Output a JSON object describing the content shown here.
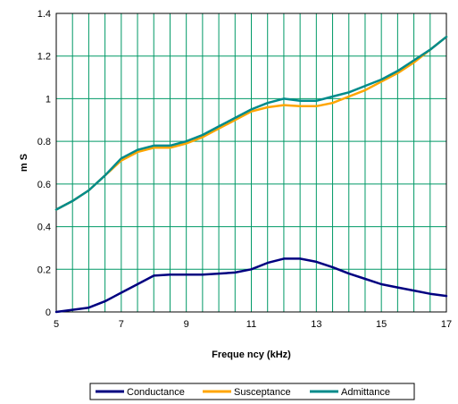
{
  "chart_data": {
    "type": "line",
    "title": "",
    "xlabel": "Freque ncy (kHz)",
    "ylabel": "m S",
    "xlim": [
      5,
      17
    ],
    "ylim": [
      0,
      1.4
    ],
    "x_ticks": [
      "5",
      "7",
      "9",
      "11",
      "13",
      "15",
      "17"
    ],
    "y_ticks": [
      "0",
      "0.2",
      "0.4",
      "0.6",
      "0.8",
      "1",
      "1.2",
      "1.4"
    ],
    "grid": true,
    "grid_color": "#009966",
    "legend_position": "bottom",
    "x": [
      5,
      5.5,
      6,
      6.5,
      7,
      7.5,
      8,
      8.5,
      9,
      9.5,
      10,
      10.5,
      11,
      11.5,
      12,
      12.5,
      13,
      13.5,
      14,
      14.5,
      15,
      15.5,
      16,
      16.5,
      17
    ],
    "series": [
      {
        "name": "Conductance",
        "color": "#000080",
        "values": [
          0.0,
          0.01,
          0.02,
          0.05,
          0.09,
          0.13,
          0.17,
          0.175,
          0.175,
          0.175,
          0.18,
          0.185,
          0.2,
          0.23,
          0.25,
          0.25,
          0.235,
          0.21,
          0.18,
          0.155,
          0.13,
          0.115,
          0.1,
          0.085,
          0.075
        ]
      },
      {
        "name": "Susceptance",
        "color": "#FFA500",
        "values": [
          0.48,
          0.52,
          0.57,
          0.64,
          0.71,
          0.75,
          0.77,
          0.77,
          0.79,
          0.82,
          0.86,
          0.9,
          0.94,
          0.96,
          0.97,
          0.965,
          0.965,
          0.98,
          1.01,
          1.04,
          1.08,
          1.12,
          1.17,
          1.23,
          1.29
        ]
      },
      {
        "name": "Admittance",
        "color": "#008B8B",
        "values": [
          0.48,
          0.52,
          0.57,
          0.64,
          0.72,
          0.76,
          0.78,
          0.78,
          0.8,
          0.83,
          0.87,
          0.91,
          0.95,
          0.98,
          1.0,
          0.99,
          0.99,
          1.01,
          1.03,
          1.06,
          1.09,
          1.13,
          1.18,
          1.23,
          1.29
        ]
      }
    ]
  }
}
